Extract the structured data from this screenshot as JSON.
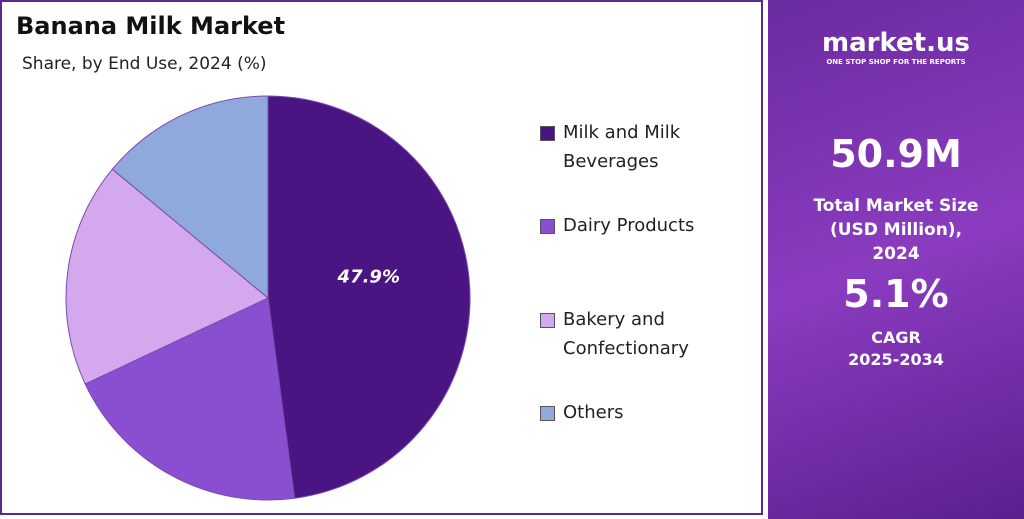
{
  "chart_data": {
    "type": "pie",
    "title": "Banana Milk Market",
    "subtitle": "Share, by End Use, 2024 (%)",
    "categories": [
      "Milk and Milk Beverages",
      "Dairy Products",
      "Bakery and Confectionary",
      "Others"
    ],
    "values": [
      47.9,
      20.1,
      18.0,
      14.0
    ],
    "value_labels": [
      "47.9%",
      null,
      null,
      null
    ],
    "colors": [
      "#4a1582",
      "#8a4fd1",
      "#d3a8ec",
      "#8fa9dc"
    ]
  },
  "panel": {
    "logo": "market.us",
    "tagline": "ONE STOP SHOP FOR THE REPORTS",
    "market_size": "50.9M",
    "market_size_label": "Total Market Size (USD Million), 2024",
    "cagr": "5.1%",
    "cagr_label": "CAGR",
    "cagr_period": "2025-2034"
  }
}
